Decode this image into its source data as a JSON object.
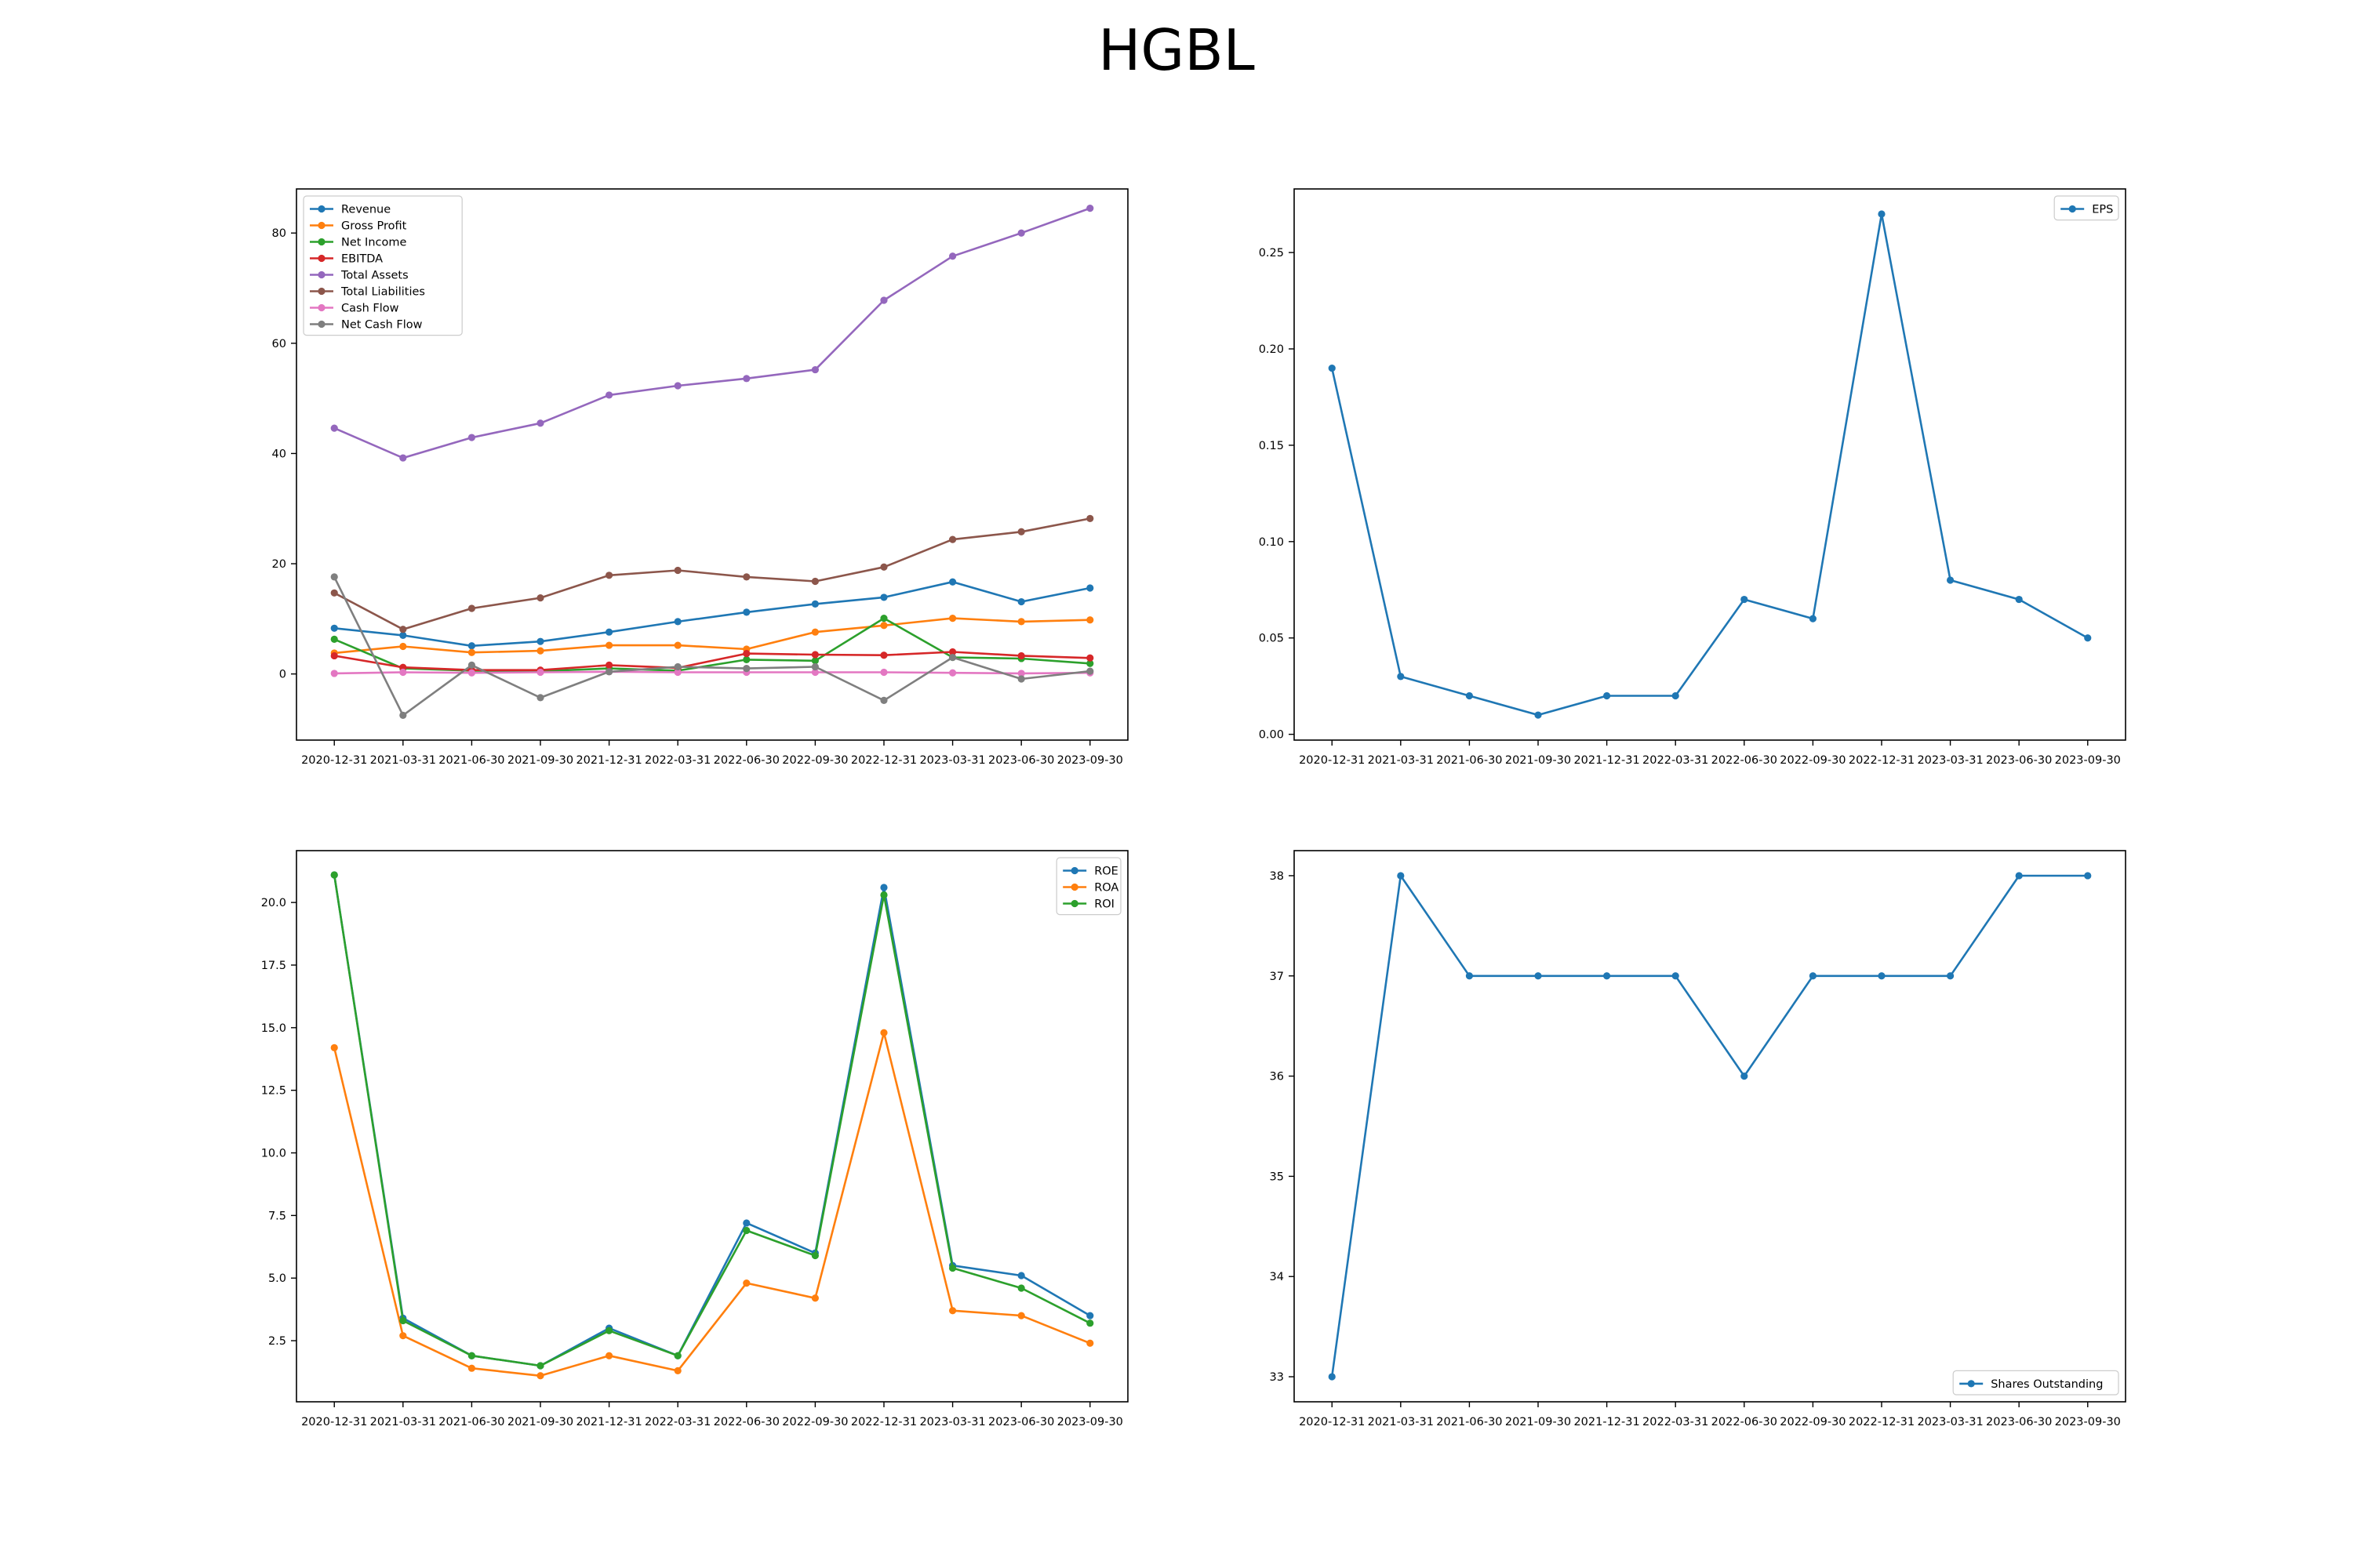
{
  "title": "HGBL",
  "colors": {
    "blue": "#1f77b4",
    "orange": "#ff7f0e",
    "green": "#2ca02c",
    "red": "#d62728",
    "purple": "#9467bd",
    "brown": "#8c564b",
    "pink": "#e377c2",
    "gray": "#7f7f7f"
  },
  "chart_data": [
    {
      "type": "line",
      "title": "",
      "xlabel": "",
      "ylabel": "",
      "x": [
        "2020-12-31",
        "2021-03-31",
        "2021-06-30",
        "2021-09-30",
        "2021-12-31",
        "2022-03-31",
        "2022-06-30",
        "2022-09-30",
        "2022-12-31",
        "2023-03-31",
        "2023-06-30",
        "2023-09-30"
      ],
      "ylim": [
        -12,
        88
      ],
      "yticks": [
        0,
        20,
        40,
        60,
        80
      ],
      "ytick_labels": [
        "0",
        "20",
        "40",
        "60",
        "80"
      ],
      "legend": "top-left",
      "grid": false,
      "series": [
        {
          "name": "Revenue",
          "color": "#1f77b4",
          "values": [
            8.3,
            7.0,
            5.1,
            5.9,
            7.6,
            9.5,
            11.2,
            12.7,
            13.9,
            16.7,
            13.1,
            15.6
          ]
        },
        {
          "name": "Gross Profit",
          "color": "#ff7f0e",
          "values": [
            3.8,
            5.0,
            3.9,
            4.2,
            5.2,
            5.2,
            4.5,
            7.6,
            8.8,
            10.1,
            9.5,
            9.8
          ]
        },
        {
          "name": "Net Income",
          "color": "#2ca02c",
          "values": [
            6.3,
            1.0,
            0.6,
            0.5,
            1.0,
            0.6,
            2.6,
            2.4,
            10.1,
            3.0,
            2.8,
            1.9
          ]
        },
        {
          "name": "EBITDA",
          "color": "#d62728",
          "values": [
            3.3,
            1.2,
            0.7,
            0.7,
            1.6,
            1.1,
            3.7,
            3.5,
            3.4,
            4.0,
            3.3,
            2.9
          ]
        },
        {
          "name": "Total Assets",
          "color": "#9467bd",
          "values": [
            44.6,
            39.2,
            42.9,
            45.5,
            50.6,
            52.3,
            53.6,
            55.2,
            67.8,
            75.8,
            80.0,
            84.5
          ]
        },
        {
          "name": "Total Liabilities",
          "color": "#8c564b",
          "values": [
            14.7,
            8.1,
            11.9,
            13.8,
            17.9,
            18.8,
            17.6,
            16.8,
            19.4,
            24.4,
            25.8,
            28.2
          ]
        },
        {
          "name": "Cash Flow",
          "color": "#e377c2",
          "values": [
            0.1,
            0.3,
            0.2,
            0.3,
            0.4,
            0.3,
            0.3,
            0.3,
            0.3,
            0.2,
            0.1,
            0.2
          ]
        },
        {
          "name": "Net Cash Flow",
          "color": "#7f7f7f",
          "values": [
            17.6,
            -7.5,
            1.6,
            -4.3,
            0.4,
            1.3,
            1.0,
            1.3,
            -4.8,
            3.0,
            -0.9,
            0.5
          ]
        }
      ]
    },
    {
      "type": "line",
      "title": "",
      "xlabel": "",
      "ylabel": "",
      "x": [
        "2020-12-31",
        "2021-03-31",
        "2021-06-30",
        "2021-09-30",
        "2021-12-31",
        "2022-03-31",
        "2022-06-30",
        "2022-09-30",
        "2022-12-31",
        "2023-03-31",
        "2023-06-30",
        "2023-09-30"
      ],
      "ylim": [
        -0.003,
        0.283
      ],
      "yticks": [
        0,
        0.05,
        0.1,
        0.15,
        0.2,
        0.25
      ],
      "ytick_labels": [
        "0.00",
        "0.05",
        "0.10",
        "0.15",
        "0.20",
        "0.25"
      ],
      "legend": "top-right",
      "grid": false,
      "series": [
        {
          "name": "EPS",
          "color": "#1f77b4",
          "values": [
            0.19,
            0.03,
            0.02,
            0.01,
            0.02,
            0.02,
            0.07,
            0.06,
            0.27,
            0.08,
            0.07,
            0.05
          ]
        }
      ]
    },
    {
      "type": "line",
      "title": "",
      "xlabel": "",
      "ylabel": "",
      "x": [
        "2020-12-31",
        "2021-03-31",
        "2021-06-30",
        "2021-09-30",
        "2021-12-31",
        "2022-03-31",
        "2022-06-30",
        "2022-09-30",
        "2022-12-31",
        "2023-03-31",
        "2023-06-30",
        "2023-09-30"
      ],
      "ylim": [
        0.06,
        22.07
      ],
      "yticks": [
        2.5,
        5.0,
        7.5,
        10.0,
        12.5,
        15.0,
        17.5,
        20.0
      ],
      "ytick_labels": [
        "2.5",
        "5.0",
        "7.5",
        "10.0",
        "12.5",
        "15.0",
        "17.5",
        "20.0"
      ],
      "legend": "top-right",
      "grid": false,
      "series": [
        {
          "name": "ROE",
          "color": "#1f77b4",
          "values": [
            21.1,
            3.4,
            1.9,
            1.5,
            3.0,
            1.9,
            7.2,
            6.0,
            20.6,
            5.5,
            5.1,
            3.5
          ]
        },
        {
          "name": "ROA",
          "color": "#ff7f0e",
          "values": [
            14.2,
            2.7,
            1.4,
            1.1,
            1.9,
            1.3,
            4.8,
            4.2,
            14.8,
            3.7,
            3.5,
            2.4
          ]
        },
        {
          "name": "ROI",
          "color": "#2ca02c",
          "values": [
            21.1,
            3.3,
            1.9,
            1.5,
            2.9,
            1.9,
            6.9,
            5.9,
            20.3,
            5.4,
            4.6,
            3.2
          ]
        }
      ]
    },
    {
      "type": "line",
      "title": "",
      "xlabel": "",
      "ylabel": "",
      "x": [
        "2020-12-31",
        "2021-03-31",
        "2021-06-30",
        "2021-09-30",
        "2021-12-31",
        "2022-03-31",
        "2022-06-30",
        "2022-09-30",
        "2022-12-31",
        "2023-03-31",
        "2023-06-30",
        "2023-09-30"
      ],
      "ylim": [
        32.75,
        38.25
      ],
      "yticks": [
        33,
        34,
        35,
        36,
        37,
        38
      ],
      "ytick_labels": [
        "33",
        "34",
        "35",
        "36",
        "37",
        "38"
      ],
      "legend": "bottom-right",
      "grid": false,
      "series": [
        {
          "name": "Shares Outstanding",
          "color": "#1f77b4",
          "values": [
            33,
            38,
            37,
            37,
            37,
            37,
            36,
            37,
            37,
            37,
            38,
            38
          ]
        }
      ]
    }
  ]
}
